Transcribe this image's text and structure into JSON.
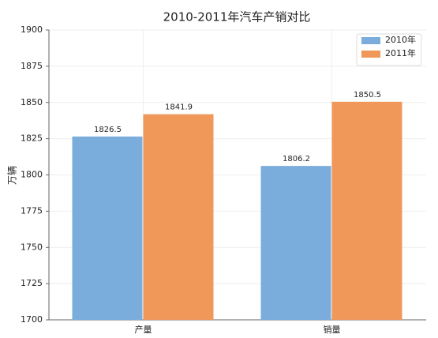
{
  "chart_data": {
    "type": "bar",
    "title": "2010-2011年汽车产销对比",
    "ylabel": "万辆",
    "categories": [
      "产量",
      "销量"
    ],
    "series": [
      {
        "name": "2010年",
        "color": "#7aaddc",
        "values": [
          1826.5,
          1806.2
        ]
      },
      {
        "name": "2011年",
        "color": "#f0975a",
        "values": [
          1841.9,
          1850.5
        ]
      }
    ],
    "ylim": [
      1700,
      1900
    ],
    "yticks": [
      1700,
      1725,
      1750,
      1775,
      1800,
      1825,
      1850,
      1875,
      1900
    ],
    "grid": true,
    "legend": "upper right",
    "show_value_labels": true
  }
}
